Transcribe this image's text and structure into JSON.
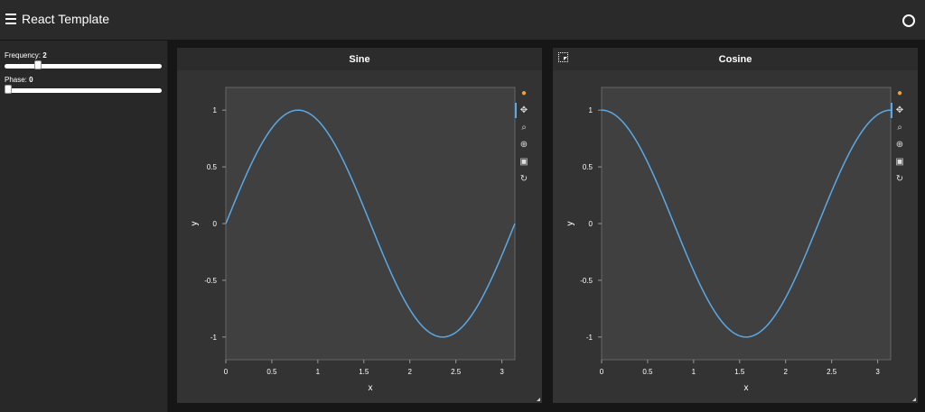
{
  "header": {
    "title": "React Template",
    "menu_icon": "hamburger-menu-icon",
    "status_icon": "circle-status-icon"
  },
  "sidebar": {
    "frequency": {
      "label": "Frequency: ",
      "value": "2",
      "fraction": 0.2
    },
    "phase": {
      "label": "Phase: ",
      "value": "0",
      "fraction": 0
    }
  },
  "toolbar": {
    "icons": [
      "bokeh-logo-icon",
      "pan-icon",
      "box-zoom-icon",
      "wheel-zoom-icon",
      "save-icon",
      "reset-icon"
    ]
  },
  "select_tool_icon": "box-select-icon",
  "chart_data": [
    {
      "type": "line",
      "title": "Sine",
      "xlabel": "x",
      "ylabel": "y",
      "xlim": [
        0,
        3.14159
      ],
      "ylim": [
        -1.2,
        1.2
      ],
      "xticks": [
        0,
        0.5,
        1,
        1.5,
        2,
        2.5,
        3
      ],
      "xtick_labels": [
        "0",
        "0.5",
        "1",
        "1.5",
        "2",
        "2.5",
        "3"
      ],
      "yticks": [
        1,
        0.5,
        0,
        -0.5,
        -1
      ],
      "ytick_labels": [
        "1",
        "0.5",
        "0",
        "-0.5",
        "-1"
      ],
      "function": "sin(2x)",
      "series": [
        {
          "x": [
            0,
            0.393,
            0.785,
            1.178,
            1.571,
            1.963,
            2.356,
            2.749,
            3.142
          ],
          "y": [
            0,
            0.707,
            1,
            0.707,
            0,
            -0.707,
            -1,
            -0.707,
            0
          ]
        }
      ],
      "color": "#5aa9e6",
      "grid": false
    },
    {
      "type": "line",
      "title": "Cosine",
      "xlabel": "x",
      "ylabel": "y",
      "xlim": [
        0,
        3.14159
      ],
      "ylim": [
        -1.2,
        1.2
      ],
      "xticks": [
        0,
        0.5,
        1,
        1.5,
        2,
        2.5,
        3
      ],
      "xtick_labels": [
        "0",
        "0.5",
        "1",
        "1.5",
        "2",
        "2.5",
        "3"
      ],
      "yticks": [
        1,
        0.5,
        0,
        -0.5,
        -1
      ],
      "ytick_labels": [
        "1",
        "0.5",
        "0",
        "-0.5",
        "-1"
      ],
      "function": "cos(2x)",
      "series": [
        {
          "x": [
            0,
            0.393,
            0.785,
            1.178,
            1.571,
            1.963,
            2.356,
            2.749,
            3.142
          ],
          "y": [
            1,
            0.707,
            0,
            -0.707,
            -1,
            -0.707,
            0,
            0.707,
            1
          ]
        }
      ],
      "color": "#5aa9e6",
      "grid": false
    }
  ]
}
